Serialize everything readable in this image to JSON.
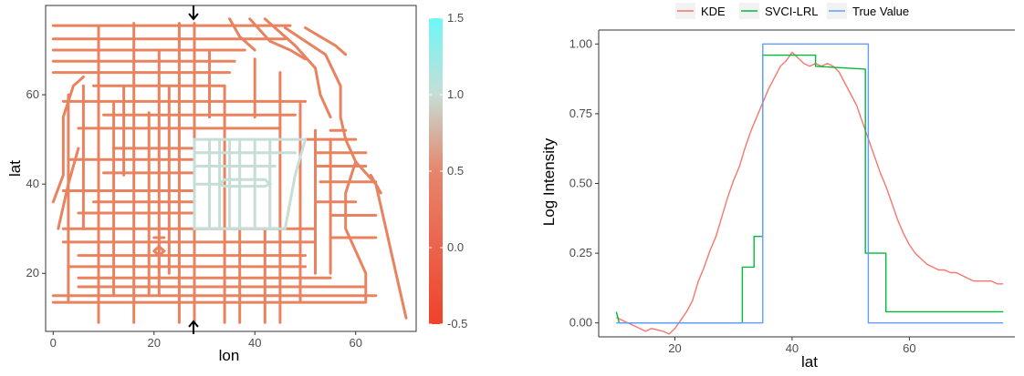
{
  "chart_data": [
    {
      "type": "heatmap",
      "title": "",
      "xlabel": "lon",
      "ylabel": "lat",
      "xlim": [
        -1.5,
        72
      ],
      "ylim": [
        7,
        80
      ],
      "x_ticks": [
        "0",
        "20",
        "40",
        "60"
      ],
      "y_ticks": [
        "20",
        "40",
        "60"
      ],
      "colorbar": {
        "ticks": [
          "1.5",
          "1.0",
          "0.5",
          "0.0",
          "-0.5"
        ],
        "range": [
          -0.5,
          1.5
        ],
        "low_color": "#f0412b",
        "mid_color": "#e5866c",
        "high_color": "#6ff6f8"
      },
      "road_color": "#e8825f",
      "highlight_color": "#c6ded5",
      "highlight_region": {
        "lon": [
          28,
          50
        ],
        "lat": [
          30,
          50
        ],
        "value": 1.0
      },
      "background_value": 0.0,
      "arrow_lon": 28,
      "grid": false
    },
    {
      "type": "line",
      "title": "",
      "xlabel": "lat",
      "ylabel": "Log Intensity",
      "xlim": [
        7,
        78
      ],
      "ylim": [
        -0.05,
        1.05
      ],
      "x_ticks": [
        "20",
        "40",
        "60"
      ],
      "y_ticks": [
        "0.00",
        "0.25",
        "0.50",
        "0.75",
        "1.00"
      ],
      "legend_position": "top",
      "grid": false,
      "series": [
        {
          "name": "KDE",
          "color": "#f8766d",
          "x": [
            10,
            12,
            14,
            15,
            16,
            18,
            19,
            20,
            21,
            22,
            23,
            24,
            25,
            26,
            27,
            28,
            29,
            30,
            31,
            32,
            33,
            34,
            35,
            36,
            37,
            38,
            39,
            40,
            41,
            42,
            43,
            44,
            45,
            46,
            47,
            48,
            49,
            50,
            51,
            52,
            53,
            54,
            55,
            56,
            57,
            58,
            59,
            60,
            61,
            62,
            63,
            64,
            65,
            66,
            67,
            68,
            69,
            70,
            71,
            72,
            73,
            74,
            75,
            76
          ],
          "y": [
            0.02,
            0.0,
            -0.02,
            -0.03,
            -0.02,
            -0.03,
            -0.04,
            -0.02,
            0.01,
            0.04,
            0.08,
            0.15,
            0.2,
            0.26,
            0.31,
            0.38,
            0.45,
            0.51,
            0.56,
            0.63,
            0.69,
            0.74,
            0.79,
            0.84,
            0.88,
            0.92,
            0.94,
            0.97,
            0.95,
            0.93,
            0.92,
            0.93,
            0.92,
            0.93,
            0.92,
            0.9,
            0.86,
            0.82,
            0.78,
            0.72,
            0.66,
            0.6,
            0.54,
            0.49,
            0.43,
            0.37,
            0.32,
            0.28,
            0.25,
            0.23,
            0.21,
            0.2,
            0.19,
            0.19,
            0.18,
            0.18,
            0.17,
            0.16,
            0.15,
            0.15,
            0.15,
            0.15,
            0.14,
            0.14
          ]
        },
        {
          "name": "SVCI-LRL",
          "color": "#00ba38",
          "x": [
            10,
            10.5,
            31.5,
            31.5,
            33.5,
            33.5,
            35,
            35,
            44,
            44,
            52.5,
            52.5,
            56,
            56,
            65,
            76
          ],
          "y": [
            0.04,
            0.0,
            0.0,
            0.2,
            0.2,
            0.31,
            0.31,
            0.96,
            0.96,
            0.92,
            0.91,
            0.25,
            0.25,
            0.04,
            0.04,
            0.04
          ]
        },
        {
          "name": "True Value",
          "color": "#619cff",
          "x": [
            10,
            35,
            35,
            53,
            53,
            76
          ],
          "y": [
            0.0,
            0.0,
            1.0,
            1.0,
            0.0,
            0.0
          ]
        }
      ]
    }
  ]
}
